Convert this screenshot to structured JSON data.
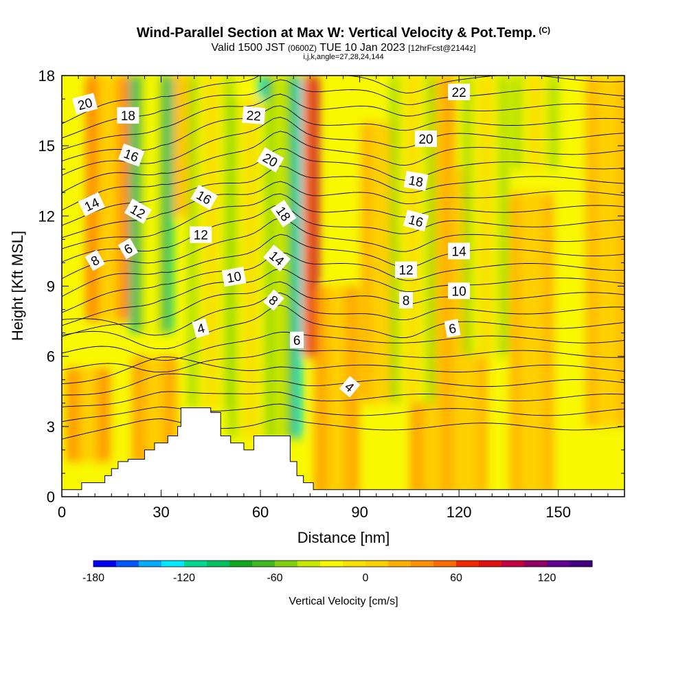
{
  "header": {
    "title": "Wind-Parallel Section at Max W: Vertical Velocity & Pot.Temp.",
    "title_mark": "(C)",
    "valid_prefix": "Valid 1500 JST",
    "valid_utc": "(0600Z)",
    "valid_date": "TUE 10 Jan 2023",
    "forecast": "[12hrFcst@2144z]",
    "section_params": "i,j,k,angle=27,28,24,144"
  },
  "chart_data": {
    "type": "heatmap",
    "xlabel": "Distance [nm]",
    "ylabel": "Height [Kft MSL]",
    "xlim": [
      0,
      170
    ],
    "ylim": [
      0,
      18
    ],
    "x_ticks": [
      0,
      30,
      60,
      90,
      120,
      150
    ],
    "y_ticks": [
      0,
      3,
      6,
      9,
      12,
      15,
      18
    ],
    "colorbar": {
      "label": "Vertical Velocity [cm/s]",
      "tick_values": [
        -180,
        -120,
        -60,
        0,
        60,
        120
      ],
      "tick_labels": [
        "-180",
        "-120",
        "-60",
        "0",
        "60",
        "120"
      ],
      "levels": [
        -180,
        -165,
        -150,
        -135,
        -120,
        -105,
        -90,
        -75,
        -60,
        -45,
        -30,
        -15,
        0,
        15,
        30,
        45,
        60,
        75,
        90,
        105,
        120,
        135,
        150
      ],
      "colors": [
        "#0000f0",
        "#0055ff",
        "#00aaff",
        "#00e8ff",
        "#00d890",
        "#00c060",
        "#10a820",
        "#40b820",
        "#80d010",
        "#c8e800",
        "#f8f800",
        "#f8e000",
        "#ffd000",
        "#ffb000",
        "#ff9000",
        "#ff6a00",
        "#f02800",
        "#e01010",
        "#c00040",
        "#900060",
        "#600090",
        "#400080"
      ],
      "background_color": "#f8f800"
    },
    "updrafts": [
      {
        "x": 14,
        "z": [
          7.5,
          18
        ],
        "w": 55
      },
      {
        "x": 8,
        "z": [
          1.5,
          5.5
        ],
        "w": 40
      },
      {
        "x": 28,
        "z": [
          1,
          6
        ],
        "w": 35
      },
      {
        "x": 38,
        "z": [
          12,
          18
        ],
        "w": 35
      },
      {
        "x": 71,
        "z": [
          6,
          18
        ],
        "w": 100
      },
      {
        "x": 83,
        "z": [
          0,
          9
        ],
        "w": 30
      },
      {
        "x": 97,
        "z": [
          4,
          16
        ],
        "w": 25
      },
      {
        "x": 112,
        "z": [
          0,
          18
        ],
        "w": 30
      },
      {
        "x": 122,
        "z": [
          0,
          14
        ],
        "w": 20
      },
      {
        "x": 142,
        "z": [
          0,
          13
        ],
        "w": 25
      },
      {
        "x": 165,
        "z": [
          3,
          18
        ],
        "w": 25
      }
    ],
    "downdrafts": [
      {
        "x": 27,
        "z": [
          7,
          18
        ],
        "w": -120
      },
      {
        "x": 45,
        "z": [
          3.8,
          18
        ],
        "w": -60
      },
      {
        "x": 66,
        "z": [
          2.5,
          18
        ],
        "w": -130
      },
      {
        "x": 57,
        "z": [
          2.5,
          17
        ],
        "w": -50
      },
      {
        "x": 106,
        "z": [
          4,
          18
        ],
        "w": -60
      },
      {
        "x": 128,
        "z": [
          6,
          18
        ],
        "w": -50
      },
      {
        "x": 143,
        "z": [
          14,
          18
        ],
        "w": -50
      }
    ],
    "terrain": {
      "x": [
        0,
        6,
        13,
        15,
        17,
        20,
        25,
        28,
        32,
        35,
        36,
        45,
        48,
        51,
        55,
        58,
        62,
        68,
        69,
        71,
        73,
        76,
        170
      ],
      "z": [
        0.3,
        0.6,
        0.9,
        1.2,
        1.5,
        1.6,
        2.0,
        2.3,
        2.6,
        3.0,
        3.8,
        3.6,
        2.6,
        2.3,
        2.0,
        2.6,
        2.6,
        2.6,
        1.5,
        0.9,
        0.6,
        0.3,
        0.3
      ]
    },
    "contour_labels": [
      {
        "x": 7,
        "z": 16.8,
        "text": "20",
        "angle": -15
      },
      {
        "x": 20,
        "z": 16.3,
        "text": "18",
        "angle": 0
      },
      {
        "x": 21,
        "z": 14.6,
        "text": "16",
        "angle": 20
      },
      {
        "x": 9,
        "z": 12.5,
        "text": "14",
        "angle": -25
      },
      {
        "x": 23,
        "z": 12.2,
        "text": "12",
        "angle": 30
      },
      {
        "x": 10,
        "z": 10.1,
        "text": "8",
        "angle": -30
      },
      {
        "x": 20,
        "z": 10.6,
        "text": "6",
        "angle": -30
      },
      {
        "x": 43,
        "z": 12.8,
        "text": "16",
        "angle": 30
      },
      {
        "x": 42,
        "z": 11.2,
        "text": "12",
        "angle": 0
      },
      {
        "x": 52,
        "z": 9.4,
        "text": "10",
        "angle": -10
      },
      {
        "x": 42,
        "z": 7.2,
        "text": "4",
        "angle": -15
      },
      {
        "x": 58,
        "z": 16.3,
        "text": "22",
        "angle": 5
      },
      {
        "x": 63,
        "z": 14.4,
        "text": "20",
        "angle": 30
      },
      {
        "x": 67,
        "z": 12.1,
        "text": "18",
        "angle": 55
      },
      {
        "x": 65,
        "z": 10.2,
        "text": "14",
        "angle": 40
      },
      {
        "x": 64,
        "z": 8.4,
        "text": "8",
        "angle": 40
      },
      {
        "x": 71,
        "z": 6.7,
        "text": "6",
        "angle": 0
      },
      {
        "x": 87,
        "z": 4.7,
        "text": "4",
        "angle": 40
      },
      {
        "x": 120,
        "z": 17.3,
        "text": "22",
        "angle": 0
      },
      {
        "x": 110,
        "z": 15.3,
        "text": "20",
        "angle": 0
      },
      {
        "x": 107,
        "z": 13.5,
        "text": "18",
        "angle": 10
      },
      {
        "x": 107,
        "z": 11.8,
        "text": "16",
        "angle": 15
      },
      {
        "x": 120,
        "z": 10.5,
        "text": "14",
        "angle": 0
      },
      {
        "x": 104,
        "z": 9.7,
        "text": "12",
        "angle": 0
      },
      {
        "x": 120,
        "z": 8.8,
        "text": "10",
        "angle": 0
      },
      {
        "x": 104,
        "z": 8.4,
        "text": "8",
        "angle": 0
      },
      {
        "x": 118,
        "z": 7.2,
        "text": "6",
        "angle": -10
      }
    ]
  }
}
